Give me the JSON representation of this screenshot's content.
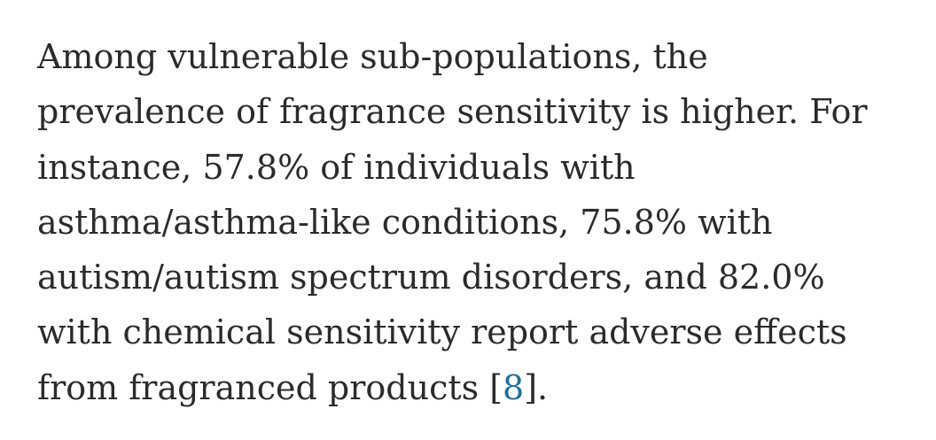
{
  "paragraph": {
    "lines": [
      "Among vulnerable sub-populations, the",
      "prevalence of fragrance sensitivity is higher. For",
      "instance, 57.8% of individuals with",
      "asthma/asthma-like conditions, 75.8% with",
      "autism/autism spectrum disorders, and 82.0%",
      "with chemical sensitivity report adverse effects"
    ],
    "last_line_prefix": "from fragranced products [",
    "citation": "8",
    "last_line_suffix": "]."
  },
  "colors": {
    "text": "#2b2b2b",
    "link": "#1f6f9a"
  }
}
